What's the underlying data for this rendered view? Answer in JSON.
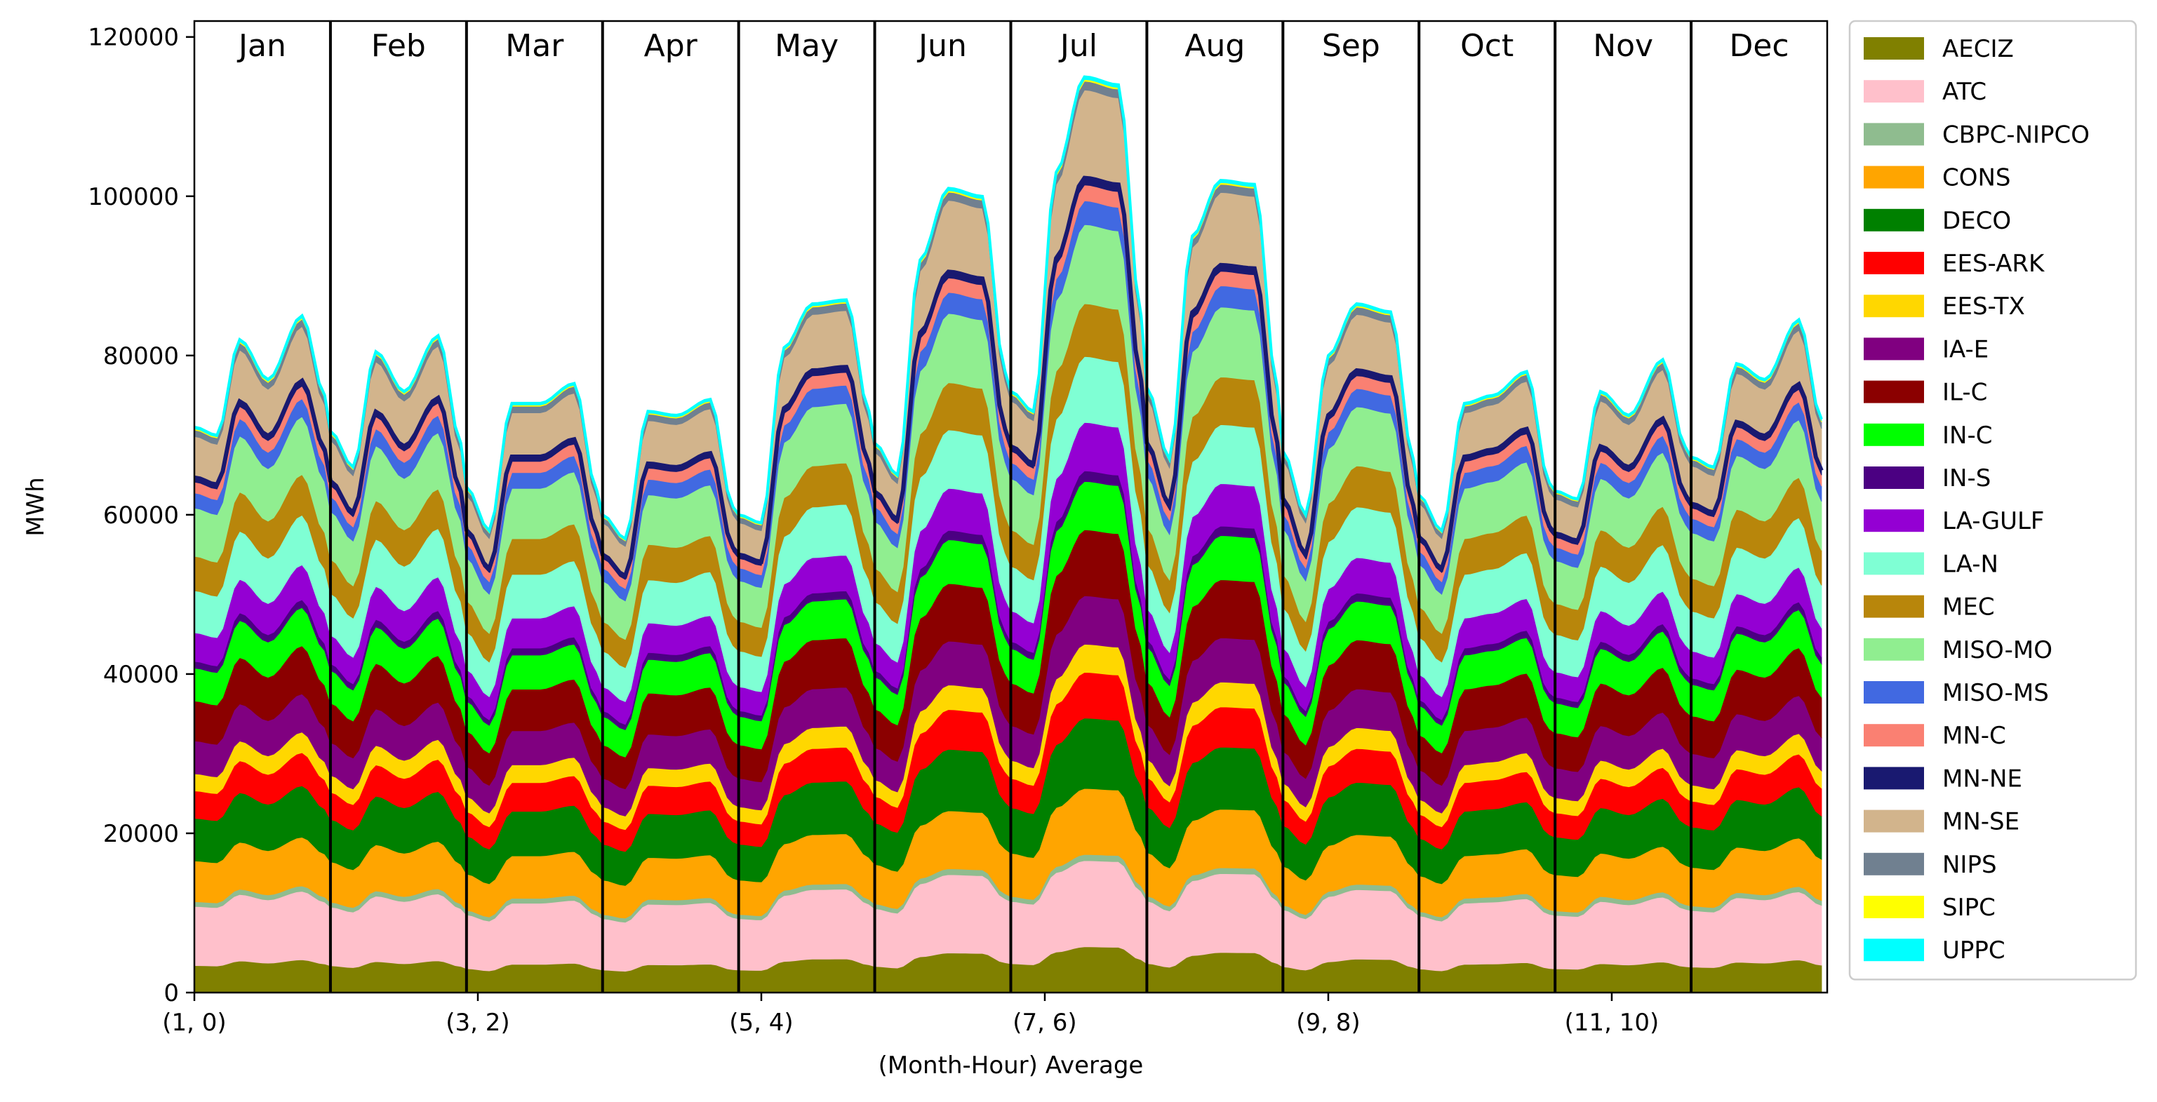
{
  "chart_data": {
    "type": "area",
    "stacked": true,
    "title": "",
    "xlabel": "(Month-Hour) Average",
    "ylabel": "MWh",
    "ylim": [
      0,
      122000
    ],
    "yticks": [
      0,
      20000,
      40000,
      60000,
      80000,
      100000,
      120000
    ],
    "ytick_labels": [
      "0",
      "20000",
      "40000",
      "60000",
      "80000",
      "100000",
      "120000"
    ],
    "xlim": [
      0,
      288
    ],
    "xticks": [
      0,
      50,
      100,
      150,
      200,
      250
    ],
    "xtick_labels": [
      "(1, 0)",
      "(3, 2)",
      "(5, 4)",
      "(7, 6)",
      "(9, 8)",
      "(11, 10)"
    ],
    "months": [
      "Jan",
      "Feb",
      "Mar",
      "Apr",
      "May",
      "Jun",
      "Jul",
      "Aug",
      "Sep",
      "Oct",
      "Nov",
      "Dec"
    ],
    "hours_per_month": 24,
    "legend_position": "outside-right",
    "grid": false,
    "monthly_total_profile": {
      "night_min": [
        70000,
        66000,
        58000,
        57000,
        59000,
        65000,
        73000,
        67000,
        60000,
        58000,
        62000,
        66000
      ],
      "morning_peak": [
        82000,
        80500,
        74000,
        73000,
        81000,
        92000,
        103000,
        95000,
        80000,
        74000,
        75500,
        79000
      ],
      "midday_dip": [
        77000,
        75500,
        74000,
        72500,
        86500,
        101000,
        115000,
        102000,
        86500,
        75000,
        72500,
        77000
      ],
      "evening_peak": [
        85000,
        82500,
        76500,
        74500,
        87000,
        100000,
        114000,
        101500,
        85500,
        78000,
        79500,
        84500
      ],
      "midnight": [
        75000,
        69000,
        63000,
        61000,
        73000,
        78000,
        85000,
        76000,
        67000,
        64000,
        68500,
        72000
      ]
    },
    "series": [
      {
        "name": "AECIZ",
        "color": "#808000",
        "share_base": 0.047,
        "share_peak": 0.052
      },
      {
        "name": "ATC",
        "color": "#ffc0cb",
        "share_base": 0.108,
        "share_peak": 0.098
      },
      {
        "name": "CBPC-NIPCO",
        "color": "#8fbc8f",
        "share_base": 0.009,
        "share_peak": 0.007
      },
      {
        "name": "CONS",
        "color": "#ffa500",
        "share_base": 0.072,
        "share_peak": 0.075
      },
      {
        "name": "DECO",
        "color": "#008000",
        "share_base": 0.075,
        "share_peak": 0.08
      },
      {
        "name": "EES-ARK",
        "color": "#ff0000",
        "share_base": 0.048,
        "share_peak": 0.052
      },
      {
        "name": "EES-TX",
        "color": "#ffd700",
        "share_base": 0.03,
        "share_peak": 0.032
      },
      {
        "name": "IA-E",
        "color": "#800080",
        "share_base": 0.06,
        "share_peak": 0.055
      },
      {
        "name": "IL-C",
        "color": "#8b0000",
        "share_base": 0.07,
        "share_peak": 0.075
      },
      {
        "name": "IN-C",
        "color": "#00ff00",
        "share_base": 0.06,
        "share_peak": 0.055
      },
      {
        "name": "IN-S",
        "color": "#4b0082",
        "share_base": 0.012,
        "share_peak": 0.012
      },
      {
        "name": "LA-GULF",
        "color": "#9400d3",
        "share_base": 0.05,
        "share_peak": 0.055
      },
      {
        "name": "LA-N",
        "color": "#7fffd4",
        "share_base": 0.075,
        "share_peak": 0.075
      },
      {
        "name": "MEC",
        "color": "#b8860b",
        "share_base": 0.062,
        "share_peak": 0.06
      },
      {
        "name": "MISO-MO",
        "color": "#90ee90",
        "share_base": 0.085,
        "share_peak": 0.09
      },
      {
        "name": "MISO-MS",
        "color": "#4169e1",
        "share_base": 0.027,
        "share_peak": 0.027
      },
      {
        "name": "MN-C",
        "color": "#fa8072",
        "share_base": 0.02,
        "share_peak": 0.018
      },
      {
        "name": "MN-NE",
        "color": "#191970",
        "share_base": 0.008,
        "share_peak": 0.008
      },
      {
        "name": "MN-SE",
        "color": "#d2b48c",
        "share_base": 0.065,
        "share_peak": 0.1
      },
      {
        "name": "NIPS",
        "color": "#708090",
        "share_base": 0.012,
        "share_peak": 0.01
      },
      {
        "name": "SIPC",
        "color": "#ffff00",
        "share_base": 0.002,
        "share_peak": 0.002
      },
      {
        "name": "UPPC",
        "color": "#00ffff",
        "share_base": 0.003,
        "share_peak": 0.003
      }
    ]
  }
}
